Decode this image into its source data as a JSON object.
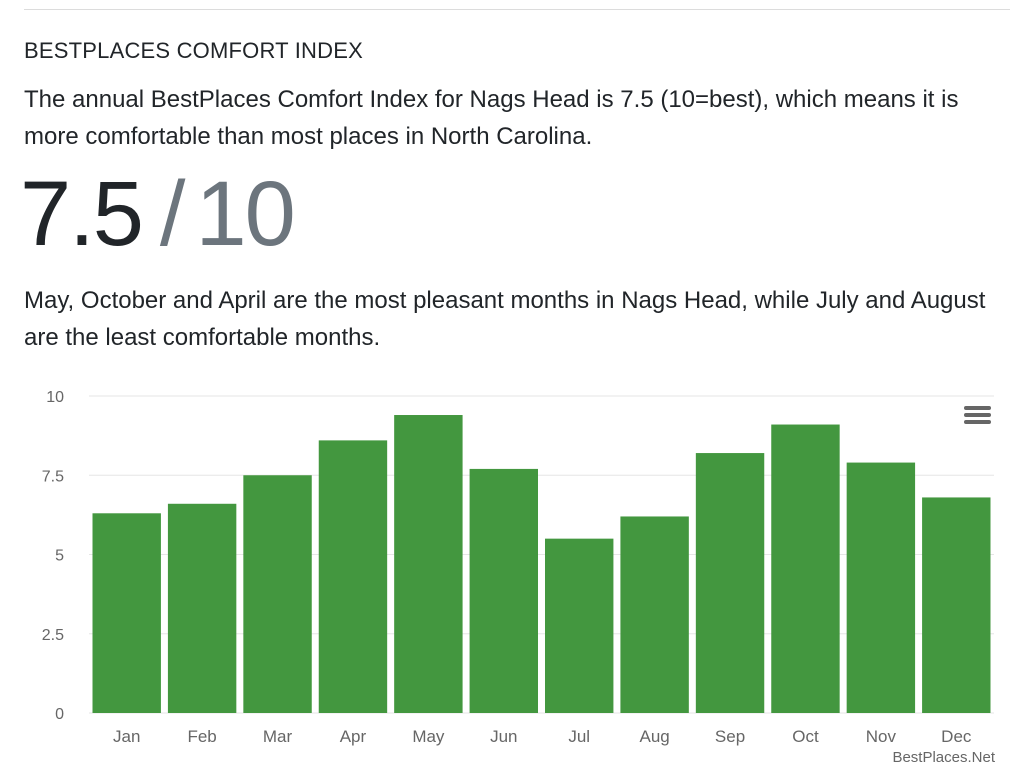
{
  "section": {
    "title": "BESTPLACES COMFORT INDEX",
    "intro": "The annual BestPlaces Comfort Index for Nags Head is 7.5 (10=best), which means it is more comfortable than most places in North Carolina."
  },
  "score": {
    "value": "7.5",
    "separator": "/",
    "max": "10"
  },
  "summary": "May, October and April are the most pleasant months in Nags Head, while July and August are the least comfortable months.",
  "credit": "BestPlaces.Net",
  "colors": {
    "bar": "#43973f",
    "grid": "#e6e6e6",
    "axis_text": "#666666",
    "menu_icon": "#666666"
  },
  "chart_data": {
    "type": "bar",
    "title": "",
    "xlabel": "",
    "ylabel": "",
    "categories": [
      "Jan",
      "Feb",
      "Mar",
      "Apr",
      "May",
      "Jun",
      "Jul",
      "Aug",
      "Sep",
      "Oct",
      "Nov",
      "Dec"
    ],
    "values": [
      6.3,
      6.6,
      7.5,
      8.6,
      9.4,
      7.7,
      5.5,
      6.2,
      8.2,
      9.1,
      7.9,
      6.8
    ],
    "ylim": [
      0,
      10
    ],
    "yticks": [
      0,
      2.5,
      5,
      7.5,
      10
    ],
    "ytick_labels": [
      "0",
      "2.5",
      "5",
      "7.5",
      "10"
    ],
    "grid": true,
    "legend": "none"
  }
}
